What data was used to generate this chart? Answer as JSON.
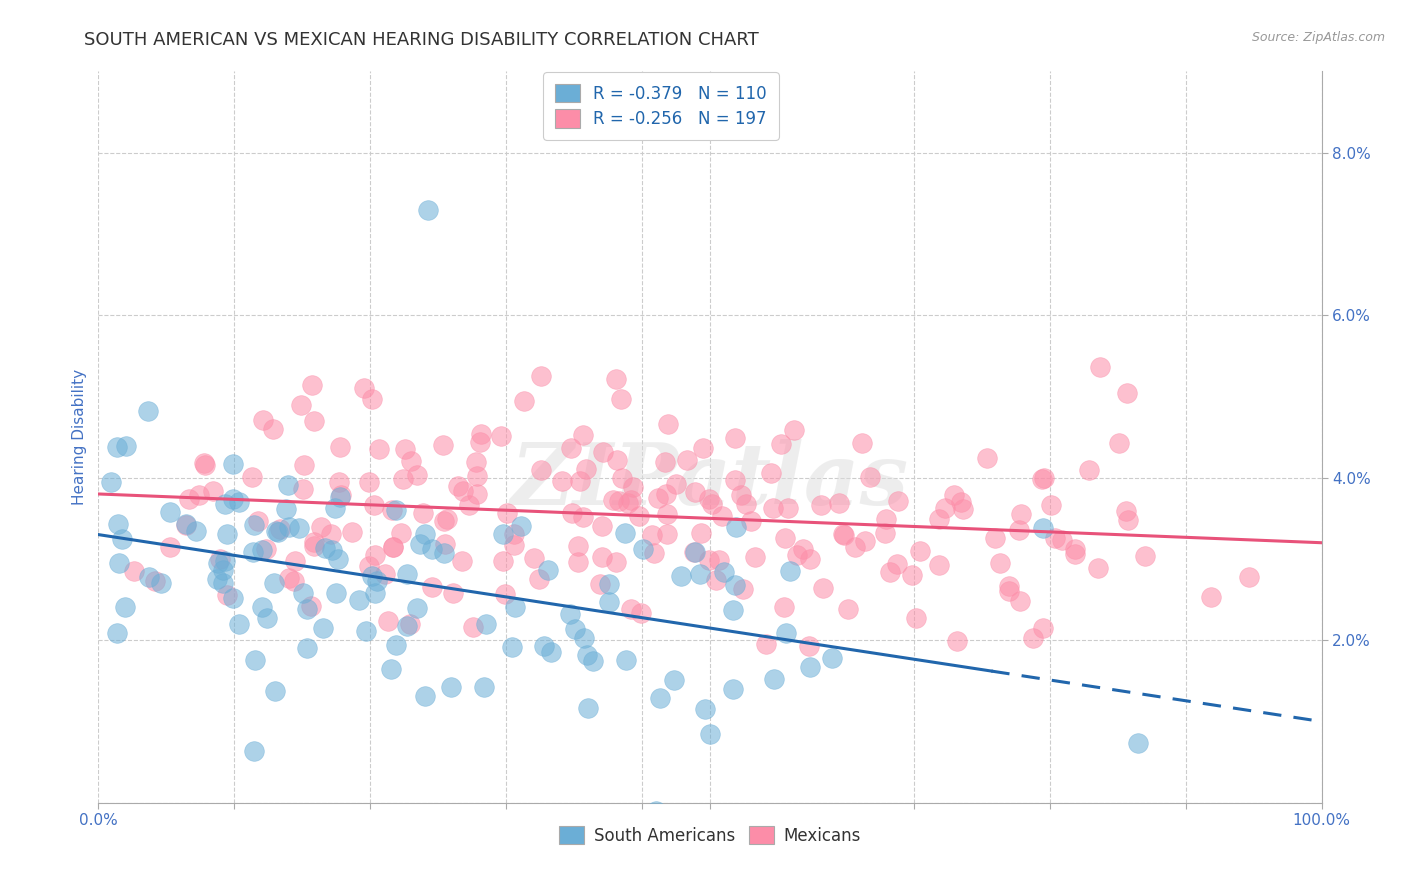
{
  "title": "SOUTH AMERICAN VS MEXICAN HEARING DISABILITY CORRELATION CHART",
  "source": "Source: ZipAtlas.com",
  "ylabel": "Hearing Disability",
  "watermark": "ZIPatlas",
  "legend_entry1": "R = -0.379   N = 110",
  "legend_entry2": "R = -0.256   N = 197",
  "legend_label1": "South Americans",
  "legend_label2": "Mexicans",
  "color_blue": "#6baed6",
  "color_pink": "#fc8da8",
  "line_blue": "#2166ac",
  "line_pink": "#e8527a",
  "background": "#ffffff",
  "grid_color": "#cccccc",
  "title_color": "#333333",
  "axis_label_color": "#4472c4",
  "source_color": "#999999",
  "xlim": [
    0.0,
    1.0
  ],
  "ylim": [
    0.0,
    0.09
  ],
  "blue_intercept": 0.033,
  "blue_slope": -0.023,
  "pink_intercept": 0.038,
  "pink_slope": -0.006,
  "N_blue": 110,
  "N_pink": 197,
  "R_blue": -0.379,
  "R_pink": -0.256,
  "seed_blue": 7,
  "seed_pink": 13,
  "dot_size": 200,
  "dot_alpha": 0.55
}
